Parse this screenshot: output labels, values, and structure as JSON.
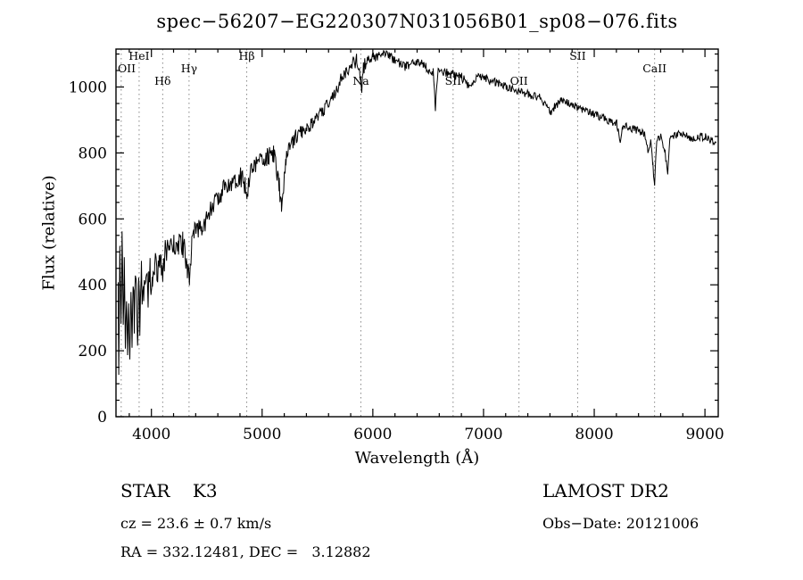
{
  "chart_data": {
    "type": "line",
    "title": "spec−56207−EG220307N031056B01_sp08−076.fits",
    "xlabel": "Wavelength (Å)",
    "ylabel": "Flux (relative)",
    "xlim": [
      3680,
      9120
    ],
    "ylim": [
      0,
      1115
    ],
    "xticks": [
      4000,
      5000,
      6000,
      7000,
      8000,
      9000
    ],
    "yticks": [
      0,
      200,
      400,
      600,
      800,
      1000
    ],
    "x_minor_step": 200,
    "y_minor_step": 50,
    "line_color": "#000000",
    "grid": false,
    "legend": "none",
    "spectral_lines": [
      {
        "label": "OII",
        "wavelength": 3727,
        "tier": 1
      },
      {
        "label": "HeI",
        "wavelength": 3889,
        "tier": 0
      },
      {
        "label": "Hδ",
        "wavelength": 4102,
        "tier": 2
      },
      {
        "label": "Hγ",
        "wavelength": 4340,
        "tier": 1
      },
      {
        "label": "Hβ",
        "wavelength": 4861,
        "tier": 0
      },
      {
        "label": "Na",
        "wavelength": 5892,
        "tier": 2
      },
      {
        "label": "SII",
        "wavelength": 6725,
        "tier": 2
      },
      {
        "label": "OII",
        "wavelength": 7320,
        "tier": 2
      },
      {
        "label": "SII",
        "wavelength": 7850,
        "tier": 0
      },
      {
        "label": "CaII",
        "wavelength": 8545,
        "tier": 1
      }
    ],
    "envelope": [
      [
        3700,
        350
      ],
      [
        3705,
        150
      ],
      [
        3715,
        480
      ],
      [
        3725,
        300
      ],
      [
        3735,
        530
      ],
      [
        3745,
        240
      ],
      [
        3755,
        430
      ],
      [
        3765,
        150
      ],
      [
        3775,
        380
      ],
      [
        3785,
        210
      ],
      [
        3795,
        300
      ],
      [
        3805,
        140
      ],
      [
        3815,
        360
      ],
      [
        3825,
        260
      ],
      [
        3835,
        430
      ],
      [
        3845,
        300
      ],
      [
        3855,
        480
      ],
      [
        3865,
        350
      ],
      [
        3875,
        250
      ],
      [
        3885,
        400
      ],
      [
        3895,
        300
      ],
      [
        3910,
        420
      ],
      [
        3930,
        340
      ],
      [
        3950,
        450
      ],
      [
        3970,
        380
      ],
      [
        3990,
        440
      ],
      [
        4010,
        400
      ],
      [
        4030,
        470
      ],
      [
        4050,
        430
      ],
      [
        4070,
        490
      ],
      [
        4090,
        450
      ],
      [
        4105,
        420
      ],
      [
        4125,
        500
      ],
      [
        4145,
        520
      ],
      [
        4165,
        480
      ],
      [
        4185,
        530
      ],
      [
        4205,
        510
      ],
      [
        4225,
        545
      ],
      [
        4245,
        505
      ],
      [
        4265,
        540
      ],
      [
        4285,
        520
      ],
      [
        4305,
        490
      ],
      [
        4325,
        460
      ],
      [
        4345,
        430
      ],
      [
        4365,
        510
      ],
      [
        4385,
        550
      ],
      [
        4405,
        560
      ],
      [
        4455,
        580
      ],
      [
        4505,
        600
      ],
      [
        4555,
        640
      ],
      [
        4605,
        665
      ],
      [
        4655,
        690
      ],
      [
        4705,
        710
      ],
      [
        4755,
        720
      ],
      [
        4805,
        730
      ],
      [
        4845,
        700
      ],
      [
        4865,
        680
      ],
      [
        4885,
        730
      ],
      [
        4905,
        755
      ],
      [
        4955,
        770
      ],
      [
        5005,
        780
      ],
      [
        5055,
        790
      ],
      [
        5105,
        795
      ],
      [
        5155,
        700
      ],
      [
        5175,
        630
      ],
      [
        5195,
        700
      ],
      [
        5215,
        780
      ],
      [
        5255,
        820
      ],
      [
        5305,
        850
      ],
      [
        5355,
        865
      ],
      [
        5405,
        880
      ],
      [
        5455,
        890
      ],
      [
        5505,
        905
      ],
      [
        5555,
        930
      ],
      [
        5605,
        955
      ],
      [
        5655,
        985
      ],
      [
        5705,
        1015
      ],
      [
        5755,
        1045
      ],
      [
        5805,
        1065
      ],
      [
        5855,
        1080
      ],
      [
        5885,
        1035
      ],
      [
        5900,
        1000
      ],
      [
        5915,
        1060
      ],
      [
        5955,
        1080
      ],
      [
        6005,
        1090
      ],
      [
        6055,
        1095
      ],
      [
        6105,
        1100
      ],
      [
        6155,
        1090
      ],
      [
        6205,
        1085
      ],
      [
        6255,
        1070
      ],
      [
        6305,
        1060
      ],
      [
        6355,
        1070
      ],
      [
        6405,
        1075
      ],
      [
        6455,
        1065
      ],
      [
        6505,
        1055
      ],
      [
        6545,
        1045
      ],
      [
        6565,
        935
      ],
      [
        6590,
        1050
      ],
      [
        6650,
        1045
      ],
      [
        6705,
        1040
      ],
      [
        6755,
        1035
      ],
      [
        6805,
        1030
      ],
      [
        6855,
        1005
      ],
      [
        6885,
        995
      ],
      [
        6905,
        1020
      ],
      [
        6955,
        1030
      ],
      [
        7005,
        1030
      ],
      [
        7055,
        1020
      ],
      [
        7105,
        1015
      ],
      [
        7155,
        1008
      ],
      [
        7205,
        1000
      ],
      [
        7255,
        995
      ],
      [
        7305,
        988
      ],
      [
        7355,
        982
      ],
      [
        7405,
        978
      ],
      [
        7455,
        972
      ],
      [
        7505,
        968
      ],
      [
        7555,
        950
      ],
      [
        7605,
        925
      ],
      [
        7655,
        945
      ],
      [
        7705,
        958
      ],
      [
        7755,
        952
      ],
      [
        7805,
        945
      ],
      [
        7855,
        938
      ],
      [
        7905,
        930
      ],
      [
        7955,
        925
      ],
      [
        8005,
        918
      ],
      [
        8055,
        910
      ],
      [
        8105,
        902
      ],
      [
        8155,
        896
      ],
      [
        8205,
        890
      ],
      [
        8235,
        820
      ],
      [
        8260,
        885
      ],
      [
        8305,
        878
      ],
      [
        8355,
        872
      ],
      [
        8405,
        866
      ],
      [
        8455,
        858
      ],
      [
        8490,
        800
      ],
      [
        8510,
        845
      ],
      [
        8530,
        760
      ],
      [
        8545,
        700
      ],
      [
        8565,
        840
      ],
      [
        8605,
        855
      ],
      [
        8640,
        800
      ],
      [
        8665,
        740
      ],
      [
        8685,
        845
      ],
      [
        8705,
        850
      ],
      [
        8755,
        855
      ],
      [
        8805,
        858
      ],
      [
        8855,
        845
      ],
      [
        8905,
        842
      ],
      [
        8955,
        850
      ],
      [
        9005,
        848
      ],
      [
        9055,
        838
      ],
      [
        9100,
        830
      ]
    ],
    "noise_regions": [
      [
        3700,
        4000,
        60
      ],
      [
        4000,
        4400,
        40
      ],
      [
        4400,
        5200,
        30
      ],
      [
        5200,
        6000,
        22
      ],
      [
        6000,
        6900,
        15
      ],
      [
        6900,
        9100,
        12
      ]
    ]
  },
  "annotations": {
    "class_label": "STAR    K3",
    "survey": "LAMOST DR2",
    "cz": "cz = 23.6 ± 0.7 km/s",
    "obs_date": "Obs−Date: 20121006",
    "ra_dec": "RA = 332.12481, DEC =   3.12882"
  }
}
